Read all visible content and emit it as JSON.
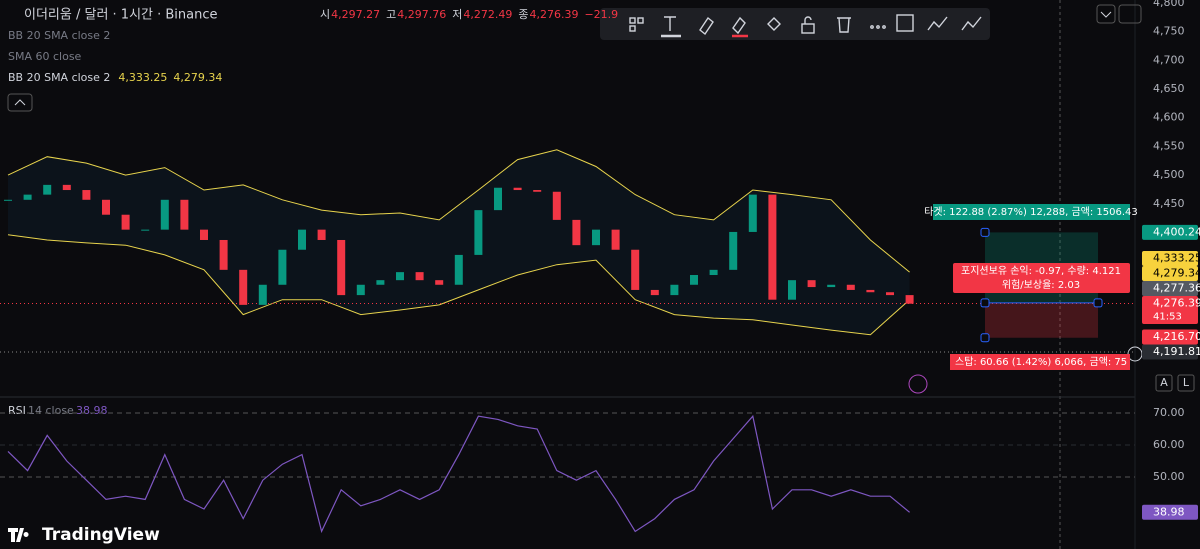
{
  "header": {
    "symbol": "이더리움 / 달러 · 1시간 · Binance",
    "ohlc": [
      {
        "key": "시",
        "value": "4,297.27"
      },
      {
        "key": "고",
        "value": "4,297.76"
      },
      {
        "key": "저",
        "value": "4,272.49"
      },
      {
        "key": "종",
        "value": "4,276.39"
      }
    ],
    "change": "−21.9",
    "indicators": [
      {
        "name": "BB 20 SMA close 2"
      },
      {
        "name": "SMA 60 close"
      },
      {
        "name": "BB 20 SMA close 2",
        "values": [
          "4,333.25",
          "4,279.34"
        ]
      }
    ]
  },
  "chart_data": {
    "type": "candlestick",
    "closes": [
      4457,
      4466,
      4483,
      4474,
      4457,
      4431,
      4405,
      4405,
      4457,
      4405,
      4387,
      4335,
      4274,
      4309,
      4370,
      4405,
      4387,
      4291,
      4309,
      4317,
      4331,
      4317,
      4309,
      4361,
      4439,
      4478,
      4474,
      4471,
      4422,
      4378,
      4405,
      4370,
      4300,
      4291,
      4309,
      4326,
      4335,
      4401,
      4466,
      4283,
      4317,
      4305,
      4309,
      4300,
      4296,
      4291,
      4276
    ],
    "bb_upper": [
      4500,
      4532,
      4521,
      4500,
      4513,
      4474,
      4483,
      4457,
      4439,
      4431,
      4434,
      4422,
      4474,
      4527,
      4544,
      4515,
      4466,
      4431,
      4422,
      4474,
      4466,
      4457,
      4387,
      4331
    ],
    "bb_lower": [
      4396,
      4387,
      4382,
      4378,
      4361,
      4335,
      4257,
      4283,
      4283,
      4257,
      4265,
      4274,
      4300,
      4326,
      4344,
      4352,
      4283,
      4257,
      4251,
      4248,
      4239,
      4230,
      4222,
      4283
    ],
    "up_color": "#089981",
    "down_color": "#f23645",
    "band_color": "#e8d44d",
    "ylim": [
      4117,
      4805
    ],
    "yticks": [
      {
        "value": 4800,
        "label": "4,800"
      },
      {
        "value": 4750,
        "label": "4,750"
      },
      {
        "value": 4700,
        "label": "4,700"
      },
      {
        "value": 4650,
        "label": "4,650"
      },
      {
        "value": 4600,
        "label": "4,600"
      },
      {
        "value": 4550,
        "label": "4,550"
      },
      {
        "value": 4500,
        "label": "4,500"
      },
      {
        "value": 4450,
        "label": "4,450"
      }
    ],
    "price_labels": [
      {
        "value": 4400.24,
        "label": "4,400.24",
        "color": "#089981"
      },
      {
        "value": 4333.25,
        "label": "4,333.25",
        "color": "#f7d23d"
      },
      {
        "value": 4279.34,
        "label": "4,279.34",
        "color": "#f7d23d"
      },
      {
        "value": 4277.36,
        "label": "4,277.36",
        "color": "#555962"
      },
      {
        "value": 4276.39,
        "label": "4,276.39",
        "sub": "41:53",
        "color": "#f23645"
      },
      {
        "value": 4216.7,
        "label": "4,216.70",
        "color": "#f23645"
      },
      {
        "value": 4191.81,
        "label": "4,191.81",
        "color": "#2a2d33"
      }
    ],
    "position_tool": {
      "target": "타겟: 122.88 (2.87%) 12,288, 금액: 1506.43",
      "pnl": "포지션보유 손익: -0.97, 수량: 4.121",
      "ratio": "위험/보상율: 2.03",
      "stop": "스탑: 60.66 (1.42%) 6,066, 금액: 75"
    },
    "rsi": {
      "name": "RSI",
      "params": "14 close",
      "value": 38.98,
      "value_label": "38.98",
      "color": "#7e57c2",
      "values": [
        58,
        52,
        63,
        55,
        49,
        43,
        44,
        43,
        57,
        43,
        40,
        49,
        37,
        49,
        54,
        57,
        33,
        46,
        41,
        43,
        46,
        43,
        46,
        57,
        69,
        68,
        66,
        65,
        52,
        49,
        52,
        43,
        33,
        37,
        43,
        46,
        55,
        62,
        69,
        40,
        46,
        46,
        44,
        46,
        44,
        44,
        38.98
      ],
      "ylim": [
        27.5,
        74.7
      ],
      "yticks": [
        {
          "value": 70,
          "label": "70.00"
        },
        {
          "value": 60,
          "label": "60.00"
        },
        {
          "value": 50,
          "label": "50.00"
        }
      ]
    }
  },
  "buttons": [
    "A",
    "L"
  ],
  "logo": "TradingView"
}
